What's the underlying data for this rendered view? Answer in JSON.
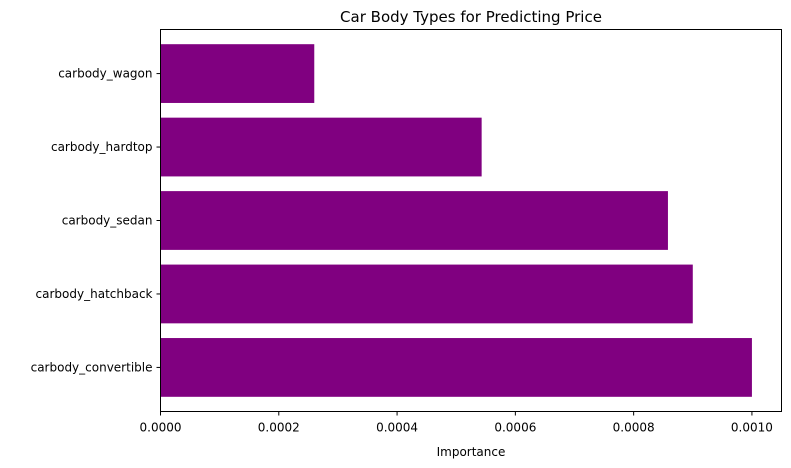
{
  "chart_data": {
    "type": "bar",
    "orientation": "horizontal",
    "title": "Car Body Types for Predicting Price",
    "xlabel": "Importance",
    "ylabel": "",
    "categories": [
      "carbody_convertible",
      "carbody_hatchback",
      "carbody_sedan",
      "carbody_hardtop",
      "carbody_wagon"
    ],
    "values": [
      0.001,
      0.0009,
      0.000858,
      0.000543,
      0.00026
    ],
    "xlim": [
      0,
      0.00105
    ],
    "xticks": [
      0.0,
      0.0002,
      0.0004,
      0.0006,
      0.0008,
      0.001
    ],
    "xtick_labels": [
      "0.0000",
      "0.0002",
      "0.0004",
      "0.0006",
      "0.0008",
      "0.0010"
    ],
    "bar_color": "#800080",
    "grid": false,
    "legend": "none"
  }
}
